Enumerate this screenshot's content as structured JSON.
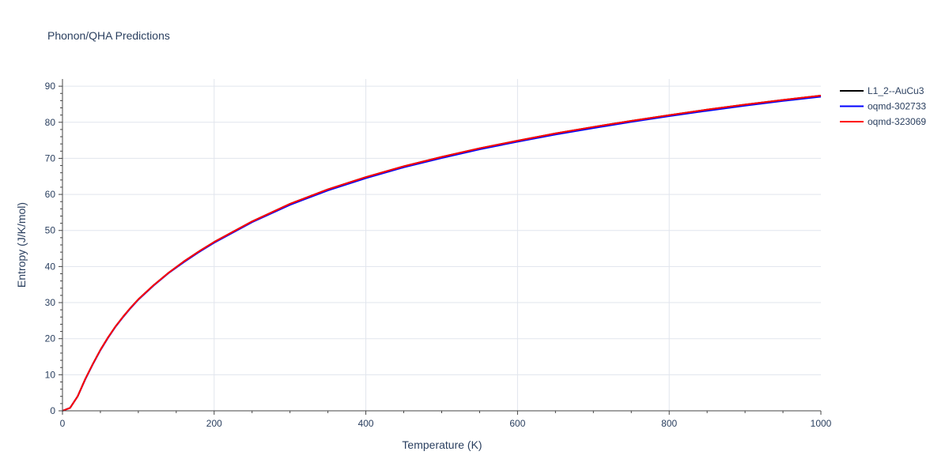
{
  "chart_data": {
    "type": "line",
    "title": "Phonon/QHA Predictions",
    "xlabel": "Temperature (K)",
    "ylabel": "Entropy (J/K/mol)",
    "xlim": [
      0,
      1000
    ],
    "ylim": [
      0,
      92
    ],
    "x_ticks": [
      0,
      200,
      400,
      600,
      800,
      1000
    ],
    "y_ticks": [
      0,
      10,
      20,
      30,
      40,
      50,
      60,
      70,
      80,
      90
    ],
    "grid": true,
    "legend_position": "top-right",
    "x": [
      0,
      10,
      20,
      30,
      40,
      50,
      60,
      70,
      80,
      90,
      100,
      120,
      140,
      160,
      180,
      200,
      250,
      300,
      350,
      400,
      450,
      500,
      550,
      600,
      650,
      700,
      750,
      800,
      850,
      900,
      950,
      1000
    ],
    "series": [
      {
        "name": "L1_2--AuCu3",
        "color": "#000000",
        "values": [
          0,
          0.8,
          4.0,
          8.8,
          13.0,
          16.9,
          20.3,
          23.4,
          26.1,
          28.6,
          30.9,
          34.8,
          38.3,
          41.4,
          44.2,
          46.8,
          52.5,
          57.4,
          61.4,
          64.8,
          67.8,
          70.4,
          72.8,
          74.9,
          76.9,
          78.7,
          80.4,
          82.0,
          83.5,
          84.9,
          86.2,
          87.4
        ]
      },
      {
        "name": "oqmd-302733",
        "color": "#0000ff",
        "values": [
          0,
          0.8,
          4.0,
          8.7,
          12.9,
          16.8,
          20.2,
          23.3,
          26.0,
          28.5,
          30.8,
          34.7,
          38.2,
          41.2,
          44.0,
          46.6,
          52.3,
          57.1,
          61.1,
          64.5,
          67.5,
          70.1,
          72.5,
          74.6,
          76.6,
          78.4,
          80.1,
          81.7,
          83.2,
          84.6,
          85.9,
          87.1
        ]
      },
      {
        "name": "oqmd-323069",
        "color": "#ff0000",
        "values": [
          0,
          0.8,
          4.0,
          8.8,
          13.0,
          16.9,
          20.3,
          23.4,
          26.1,
          28.6,
          30.9,
          34.8,
          38.3,
          41.4,
          44.2,
          46.8,
          52.5,
          57.4,
          61.4,
          64.8,
          67.8,
          70.4,
          72.8,
          74.9,
          76.9,
          78.7,
          80.4,
          82.0,
          83.5,
          84.9,
          86.2,
          87.4
        ]
      }
    ]
  }
}
